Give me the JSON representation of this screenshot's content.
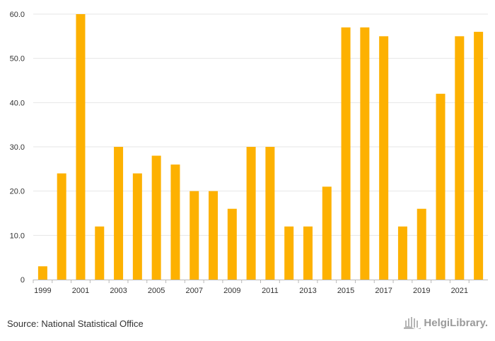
{
  "chart_data": {
    "type": "bar",
    "x": [
      1999,
      2000,
      2001,
      2002,
      2003,
      2004,
      2005,
      2006,
      2007,
      2008,
      2009,
      2010,
      2011,
      2012,
      2013,
      2014,
      2015,
      2016,
      2017,
      2018,
      2019,
      2020,
      2021,
      2022
    ],
    "values": [
      3,
      24,
      60,
      12,
      30,
      24,
      28,
      26,
      20,
      20,
      16,
      30,
      30,
      12,
      12,
      21,
      57,
      57,
      55,
      12,
      16,
      42,
      55,
      56
    ],
    "xticks": [
      "1999",
      "2001",
      "2003",
      "2005",
      "2007",
      "2009",
      "2011",
      "2013",
      "2015",
      "2017",
      "2019",
      "2021"
    ],
    "yticks": [
      "0",
      "10.0",
      "20.0",
      "30.0",
      "40.0",
      "50.0",
      "60.0"
    ],
    "ylim": [
      0,
      60
    ],
    "bar_color": "#FDB101",
    "grid": true,
    "title": "",
    "xlabel": "",
    "ylabel": ""
  },
  "footer": {
    "source": "Source: National Statistical Office",
    "brand": "HelgiLibrary.",
    "brand_icon": "building-icon"
  }
}
